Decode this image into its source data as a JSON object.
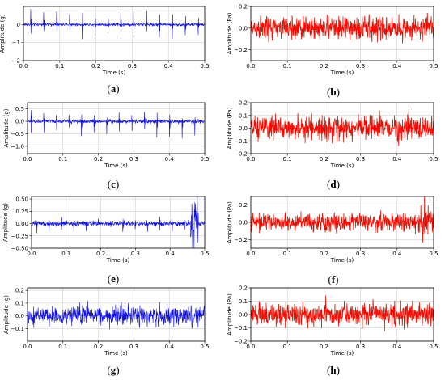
{
  "figure": {
    "colors": {
      "accel": "#1010e0",
      "acoustic": "#ff0000",
      "acoustic_under": "#8a4a00",
      "grid": "#c8c8c8",
      "axis": "#000000"
    }
  },
  "chart_data": [
    {
      "panel": "a",
      "caption": "(a)",
      "type": "line",
      "xlabel": "Time (s)",
      "ylabel": "Amplitude (g)",
      "xlim": [
        0.0,
        0.5
      ],
      "ylim": [
        -2,
        1
      ],
      "xticks": [
        0.0,
        0.1,
        0.2,
        0.3,
        0.4,
        0.5
      ],
      "yticks": [
        -2,
        -1,
        0
      ],
      "xtick_labels": [
        "0.0",
        "0.1",
        "0.2",
        "0.3",
        "0.4",
        "0.5"
      ],
      "ytick_labels": [
        "−2",
        "−1",
        "0"
      ],
      "grid": true,
      "series": [
        {
          "color": "accel",
          "noise_amplitude": 0.12,
          "impulse_period": 0.0355,
          "impulse_first": 0.02,
          "impulse_amplitude": 0.95,
          "impulse_negative": 0.9
        }
      ]
    },
    {
      "panel": "b",
      "caption": "(b)",
      "type": "line",
      "xlabel": "Time (s)",
      "ylabel": "Amplitude (Pa)",
      "xlim": [
        0.0,
        0.5
      ],
      "ylim": [
        -0.3,
        0.2
      ],
      "xticks": [
        0.0,
        0.1,
        0.2,
        0.3,
        0.4,
        0.5
      ],
      "yticks": [
        -0.2,
        0.0,
        0.2
      ],
      "xtick_labels": [
        "0.0",
        "0.1",
        "0.2",
        "0.3",
        "0.4",
        "0.5"
      ],
      "ytick_labels": [
        "−0.2",
        "0.0",
        "0.2"
      ],
      "grid": true,
      "series": [
        {
          "color": "acoustic",
          "noise_amplitude": 0.14
        }
      ]
    },
    {
      "panel": "c",
      "caption": "(c)",
      "type": "line",
      "xlabel": "Time (s)",
      "ylabel": "Amplitude (g)",
      "xlim": [
        0.0,
        0.5
      ],
      "ylim": [
        -1.3,
        0.75
      ],
      "xticks": [
        0.0,
        0.1,
        0.2,
        0.3,
        0.4,
        0.5
      ],
      "yticks": [
        -1.0,
        -0.5,
        0.0,
        0.5
      ],
      "xtick_labels": [
        "0.0",
        "0.1",
        "0.2",
        "0.3",
        "0.4",
        "0.5"
      ],
      "ytick_labels": [
        "−1.0",
        "−0.5",
        "0.0",
        "0.5"
      ],
      "grid": true,
      "series": [
        {
          "color": "accel",
          "noise_amplitude": 0.1,
          "impulse_period": 0.0355,
          "impulse_first": 0.01,
          "impulse_amplitude": 0.5,
          "impulse_negative": 0.8
        }
      ]
    },
    {
      "panel": "d",
      "caption": "(d)",
      "type": "line",
      "xlabel": "Time (s)",
      "ylabel": "Amplitude (Pa)",
      "xlim": [
        0.0,
        0.5
      ],
      "ylim": [
        -0.2,
        0.2
      ],
      "xticks": [
        0.0,
        0.1,
        0.2,
        0.3,
        0.4,
        0.5
      ],
      "yticks": [
        -0.2,
        -0.1,
        0.0,
        0.1,
        0.2
      ],
      "xtick_labels": [
        "0.0",
        "0.1",
        "0.2",
        "0.3",
        "0.4",
        "0.5"
      ],
      "ytick_labels": [
        "−0.2",
        "−0.1",
        "0.0",
        "0.1",
        "0.2"
      ],
      "grid": true,
      "series": [
        {
          "color": "acoustic",
          "noise_amplitude": 0.12
        }
      ]
    },
    {
      "panel": "e",
      "caption": "(e)",
      "type": "line",
      "xlabel": "Time (s)",
      "ylabel": "Amplitude (g)",
      "xlim": [
        0.0,
        0.5
      ],
      "ylim": [
        -0.5,
        0.55
      ],
      "xticks": [
        0.0,
        0.1,
        0.2,
        0.3,
        0.4,
        0.5
      ],
      "yticks": [
        -0.5,
        -0.25,
        0.0,
        0.25,
        0.5
      ],
      "xtick_labels": [
        "0.0",
        "0.1",
        "0.2",
        "0.3",
        "0.4",
        "0.5"
      ],
      "ytick_labels": [
        "−0.50",
        "−0.25",
        "0.00",
        "0.25",
        "0.50"
      ],
      "grid": true,
      "series": [
        {
          "color": "accel",
          "noise_amplitude": 0.07,
          "impulse_period": 0.0355,
          "impulse_first": 0.015,
          "impulse_amplitude": 0.12,
          "impulse_negative": 0.2,
          "burst_at": 0.47,
          "burst_amplitude": 0.5
        }
      ]
    },
    {
      "panel": "f",
      "caption": "(f)",
      "type": "line",
      "xlabel": "Time (s)",
      "ylabel": "Amplitude (Pa)",
      "xlim": [
        0.0,
        0.5
      ],
      "ylim": [
        -0.3,
        0.3
      ],
      "xticks": [
        0.0,
        0.1,
        0.2,
        0.3,
        0.4,
        0.5
      ],
      "yticks": [
        -0.2,
        0.0,
        0.2
      ],
      "xtick_labels": [
        "0.0",
        "0.1",
        "0.2",
        "0.3",
        "0.4",
        "0.5"
      ],
      "ytick_labels": [
        "−0.2",
        "0.0",
        "0.2"
      ],
      "grid": true,
      "series": [
        {
          "color": "acoustic",
          "noise_amplitude": 0.13,
          "burst_at": 0.475,
          "burst_amplitude": 0.22
        }
      ]
    },
    {
      "panel": "g",
      "caption": "(g)",
      "type": "line",
      "xlabel": "Time (s)",
      "ylabel": "Amplitude (g)",
      "xlim": [
        0.0,
        0.5
      ],
      "ylim": [
        -0.2,
        0.22
      ],
      "xticks": [
        0.0,
        0.1,
        0.2,
        0.3,
        0.4,
        0.5
      ],
      "yticks": [
        -0.1,
        0.0,
        0.1,
        0.2
      ],
      "xtick_labels": [
        "0.0",
        "0.1",
        "0.2",
        "0.3",
        "0.4",
        "0.5"
      ],
      "ytick_labels": [
        "−0.1",
        "0.0",
        "0.1",
        "0.2"
      ],
      "grid": true,
      "series": [
        {
          "color": "accel",
          "noise_amplitude": 0.1
        }
      ]
    },
    {
      "panel": "h",
      "caption": "(h)",
      "type": "line",
      "xlabel": "Time (s)",
      "ylabel": "Amplitude (Pa)",
      "xlim": [
        0.0,
        0.5
      ],
      "ylim": [
        -0.2,
        0.2
      ],
      "xticks": [
        0.0,
        0.1,
        0.2,
        0.3,
        0.4,
        0.5
      ],
      "yticks": [
        -0.2,
        -0.1,
        0.0,
        0.1,
        0.2
      ],
      "xtick_labels": [
        "0.0",
        "0.1",
        "0.2",
        "0.3",
        "0.4",
        "0.5"
      ],
      "ytick_labels": [
        "−0.2",
        "−0.1",
        "0.0",
        "0.1",
        "0.2"
      ],
      "grid": true,
      "series": [
        {
          "color": "acoustic",
          "noise_amplitude": 0.11
        }
      ]
    }
  ]
}
